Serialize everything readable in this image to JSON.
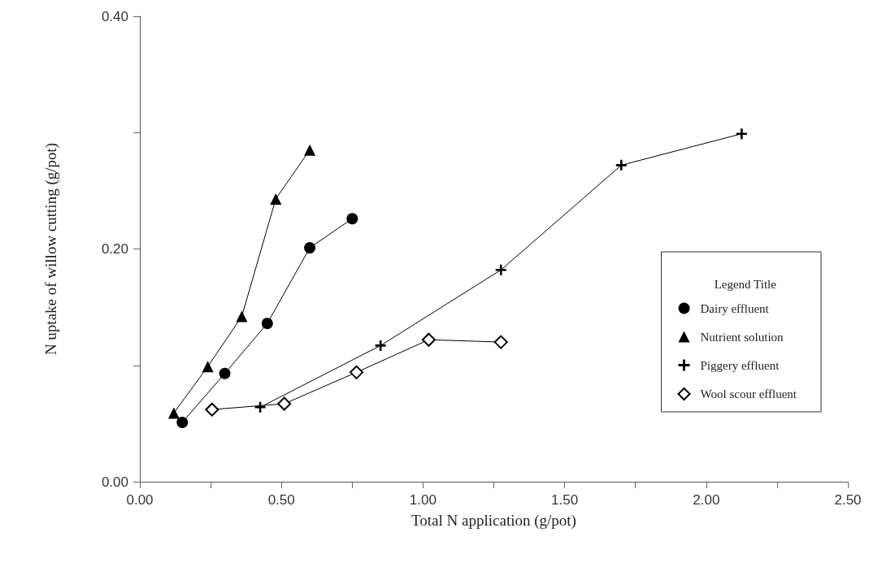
{
  "chart_data": {
    "type": "line",
    "xlabel": "Total N application (g/pot)",
    "ylabel": "N uptake of willow cutting (g/pot)",
    "legend_title": "Legend Title",
    "series": [
      {
        "name": "Dairy effluent",
        "color": "#000000",
        "marker": "circle",
        "x": [
          0.15,
          0.3,
          0.45,
          0.6,
          0.75
        ],
        "values": [
          0.051,
          0.093,
          0.136,
          0.201,
          0.226
        ]
      },
      {
        "name": "Nutrient solution",
        "color": "#000000",
        "marker": "triangle",
        "x": [
          0.12,
          0.24,
          0.36,
          0.48,
          0.6
        ],
        "values": [
          0.059,
          0.099,
          0.142,
          0.243,
          0.285
        ]
      },
      {
        "name": "Piggery effluent",
        "color": "#000000",
        "marker": "cross",
        "x": [
          0.425,
          0.85,
          1.275,
          1.7,
          2.125
        ],
        "values": [
          0.064,
          0.117,
          0.182,
          0.272,
          0.299
        ]
      },
      {
        "name": "Wool scour effluent",
        "color": "#000000",
        "marker": "diamond",
        "x": [
          0.255,
          0.51,
          0.765,
          1.02,
          1.275
        ],
        "values": [
          0.062,
          0.067,
          0.094,
          0.122,
          0.12
        ]
      }
    ],
    "xlim": [
      0,
      2.5
    ],
    "ylim": [
      0,
      0.4
    ],
    "xticks": [
      {
        "value": 0,
        "label": "0.00"
      },
      {
        "value": 0.25,
        "label": null
      },
      {
        "value": 0.5,
        "label": "0.50"
      },
      {
        "value": 0.75,
        "label": null
      },
      {
        "value": 1,
        "label": "1.00"
      },
      {
        "value": 1.25,
        "label": null
      },
      {
        "value": 1.5,
        "label": "1.50"
      },
      {
        "value": 1.75,
        "label": null
      },
      {
        "value": 2,
        "label": "2.00"
      },
      {
        "value": 2.25,
        "label": null
      },
      {
        "value": 2.5,
        "label": "2.50"
      }
    ],
    "yticks": [
      {
        "value": 0,
        "label": "0.00"
      },
      {
        "value": 0.1,
        "label": null
      },
      {
        "value": 0.2,
        "label": "0.20"
      },
      {
        "value": 0.3,
        "label": null
      },
      {
        "value": 0.4,
        "label": "0.40"
      }
    ],
    "grid": false,
    "legend": "bottom right"
  }
}
